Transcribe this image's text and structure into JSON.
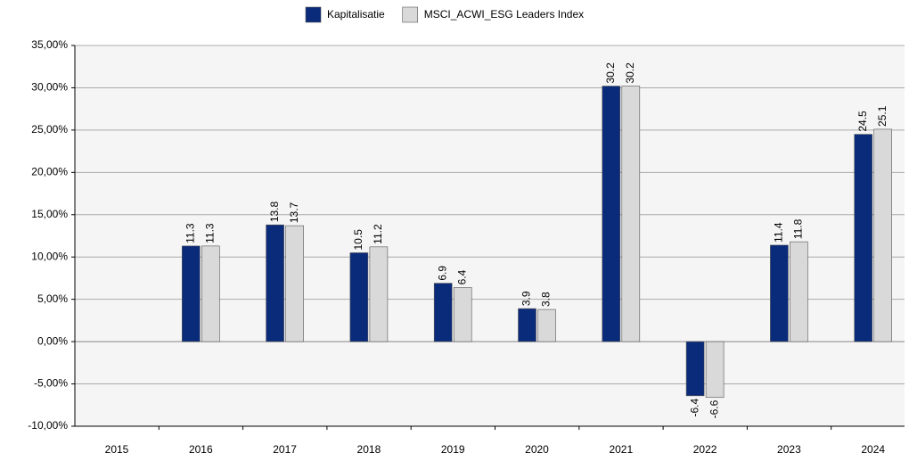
{
  "chart_data": {
    "type": "bar",
    "categories": [
      "2015",
      "2016",
      "2017",
      "2018",
      "2019",
      "2020",
      "2021",
      "2022",
      "2023",
      "2024"
    ],
    "series": [
      {
        "name": "Kapitalisatie",
        "color": "#0a2a7a",
        "values": [
          null,
          11.3,
          13.8,
          10.5,
          6.9,
          3.9,
          30.2,
          -6.4,
          11.4,
          24.5
        ]
      },
      {
        "name": "MSCI_ACWI_ESG Leaders Index",
        "color": "#d9d9d9",
        "values": [
          null,
          11.3,
          13.7,
          11.2,
          6.4,
          3.8,
          30.2,
          -6.6,
          11.8,
          25.1
        ]
      }
    ],
    "ylim": [
      -10,
      35
    ],
    "yticks": [
      {
        "value": -10,
        "label": "-10,00%"
      },
      {
        "value": -5,
        "label": "-5,00%"
      },
      {
        "value": 0,
        "label": "0,00%"
      },
      {
        "value": 5,
        "label": "5,00%"
      },
      {
        "value": 10,
        "label": "10,00%"
      },
      {
        "value": 15,
        "label": "15,00%"
      },
      {
        "value": 20,
        "label": "20,00%"
      },
      {
        "value": 25,
        "label": "25,00%"
      },
      {
        "value": 30,
        "label": "30,00%"
      },
      {
        "value": 35,
        "label": "35,00%"
      }
    ],
    "grid": true,
    "legend": "top"
  }
}
